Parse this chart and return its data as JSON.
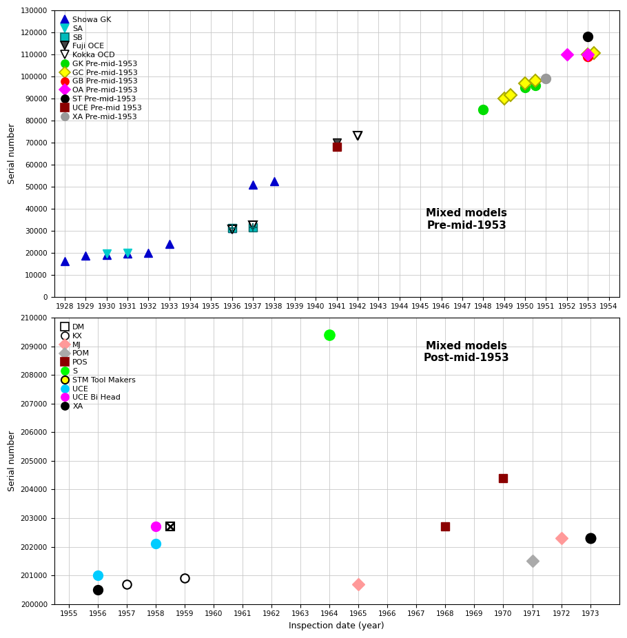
{
  "top_plot": {
    "title": "Mixed models\nPre-mid-1953",
    "ylabel": "Serial number",
    "xlim": [
      1927.5,
      1954.5
    ],
    "ylim": [
      0,
      130000
    ],
    "yticks": [
      0,
      10000,
      20000,
      30000,
      40000,
      50000,
      60000,
      70000,
      80000,
      90000,
      100000,
      110000,
      120000,
      130000
    ],
    "xticks": [
      1928,
      1929,
      1930,
      1931,
      1932,
      1933,
      1934,
      1935,
      1936,
      1937,
      1938,
      1939,
      1940,
      1941,
      1942,
      1943,
      1944,
      1945,
      1946,
      1947,
      1948,
      1949,
      1950,
      1951,
      1952,
      1953,
      1954
    ],
    "series": [
      {
        "label": "Showa GK",
        "marker": "^",
        "ms": 9,
        "mfc": "#0000CC",
        "mec": "#0000CC",
        "mew": 1.0,
        "data": [
          [
            1928,
            16000
          ],
          [
            1929,
            18500
          ],
          [
            1930,
            19000
          ],
          [
            1931,
            19500
          ],
          [
            1932,
            20000
          ],
          [
            1933,
            24000
          ],
          [
            1936,
            31000
          ],
          [
            1937,
            51000
          ],
          [
            1938,
            52500
          ]
        ]
      },
      {
        "label": "SA",
        "marker": "v",
        "ms": 9,
        "mfc": "#00CCCC",
        "mec": "#00CCCC",
        "mew": 1.0,
        "data": [
          [
            1930,
            19500
          ],
          [
            1931,
            20000
          ]
        ]
      },
      {
        "label": "SB",
        "marker": "SB",
        "ms": 9,
        "mfc": "#00BBBB",
        "mec": "#006666",
        "mew": 1.0,
        "data": [
          [
            1936,
            31000
          ],
          [
            1937,
            31500
          ]
        ]
      },
      {
        "label": "Fuji OCE",
        "marker": "fuji",
        "ms": 9,
        "mfc": "#444444",
        "mec": "#000000",
        "mew": 1.0,
        "data": [
          [
            1941,
            70000
          ],
          [
            1942,
            73000
          ]
        ]
      },
      {
        "label": "Kokka OCD",
        "marker": "v",
        "ms": 9,
        "mfc": "#ffffff",
        "mec": "#000000",
        "mew": 1.5,
        "data": [
          [
            1936,
            30500
          ],
          [
            1937,
            32500
          ],
          [
            1942,
            73000
          ]
        ]
      },
      {
        "label": "GK Pre-mid-1953",
        "marker": "o",
        "ms": 10,
        "mfc": "#00DD00",
        "mec": "#00DD00",
        "mew": 1.0,
        "data": [
          [
            1948,
            85000
          ],
          [
            1950,
            95000
          ],
          [
            1950.5,
            96000
          ]
        ]
      },
      {
        "label": "GC Pre-mid-1953",
        "marker": "D",
        "ms": 9,
        "mfc": "#FFFF00",
        "mec": "#AAAA00",
        "mew": 1.5,
        "data": [
          [
            1949,
            90000
          ],
          [
            1949.3,
            91500
          ],
          [
            1950,
            97000
          ],
          [
            1950.5,
            98000
          ],
          [
            1953,
            110000
          ],
          [
            1953.3,
            110500
          ]
        ]
      },
      {
        "label": "GB Pre-mid-1953",
        "marker": "o",
        "ms": 10,
        "mfc": "#FF0000",
        "mec": "#FF0000",
        "mew": 1.0,
        "data": [
          [
            1953,
            109000
          ]
        ]
      },
      {
        "label": "OA Pre-mid-1953",
        "marker": "D",
        "ms": 9,
        "mfc": "#FF00FF",
        "mec": "#FF00FF",
        "mew": 1.0,
        "data": [
          [
            1952,
            110000
          ],
          [
            1953,
            110000
          ]
        ]
      },
      {
        "label": "ST Pre-mid-1953",
        "marker": "o",
        "ms": 10,
        "mfc": "#000000",
        "mec": "#000000",
        "mew": 1.0,
        "data": [
          [
            1953,
            118000
          ]
        ]
      },
      {
        "label": "UCE Pre-mid 1953",
        "marker": "s",
        "ms": 8,
        "mfc": "#8B0000",
        "mec": "#8B0000",
        "mew": 1.0,
        "data": [
          [
            1941,
            68000
          ]
        ]
      },
      {
        "label": "XA Pre-mid-1953",
        "marker": "o",
        "ms": 10,
        "mfc": "#999999",
        "mec": "#999999",
        "mew": 1.0,
        "data": [
          [
            1951,
            99000
          ]
        ]
      }
    ],
    "legend_items": [
      {
        "label": "Showa GK",
        "marker": "^",
        "mfc": "#0000CC",
        "mec": "#0000CC"
      },
      {
        "label": "SA",
        "marker": "v",
        "mfc": "#00CCCC",
        "mec": "#00CCCC"
      },
      {
        "label": "SB",
        "marker": "SB",
        "mfc": "#00BBBB",
        "mec": "#006666"
      },
      {
        "label": "Fuji OCE",
        "marker": "fuji",
        "mfc": "#444444",
        "mec": "#000000"
      },
      {
        "label": "Kokka OCD",
        "marker": "v",
        "mfc": "#ffffff",
        "mec": "#000000"
      },
      {
        "label": "GK Pre-mid-1953",
        "marker": "o",
        "mfc": "#00DD00",
        "mec": "#00DD00"
      },
      {
        "label": "GC Pre-mid-1953",
        "marker": "D",
        "mfc": "#FFFF00",
        "mec": "#AAAA00"
      },
      {
        "label": "GB Pre-mid-1953",
        "marker": "o",
        "mfc": "#FF0000",
        "mec": "#FF0000"
      },
      {
        "label": "OA Pre-mid-1953",
        "marker": "D",
        "mfc": "#FF00FF",
        "mec": "#FF00FF"
      },
      {
        "label": "ST Pre-mid-1953",
        "marker": "o",
        "mfc": "#000000",
        "mec": "#000000"
      },
      {
        "label": "UCE Pre-mid 1953",
        "marker": "s",
        "mfc": "#8B0000",
        "mec": "#8B0000"
      },
      {
        "label": "XA Pre-mid-1953",
        "marker": "o",
        "mfc": "#999999",
        "mec": "#999999"
      }
    ]
  },
  "bottom_plot": {
    "title": "Mixed models\nPost-mid-1953",
    "xlabel": "Inspection date (year)",
    "ylabel": "Serial number",
    "xlim": [
      1954.5,
      1974.0
    ],
    "ylim": [
      200000,
      210000
    ],
    "yticks": [
      200000,
      201000,
      202000,
      203000,
      204000,
      205000,
      206000,
      207000,
      208000,
      209000,
      210000
    ],
    "xticks": [
      1955,
      1956,
      1957,
      1958,
      1959,
      1960,
      1961,
      1962,
      1963,
      1964,
      1965,
      1966,
      1967,
      1968,
      1969,
      1970,
      1971,
      1972,
      1973
    ],
    "series": [
      {
        "label": "DM",
        "marker": "DM",
        "ms": 9,
        "mfc": "#ffffff",
        "mec": "#000000",
        "mew": 1.5,
        "data": [
          [
            1958.5,
            202700
          ]
        ]
      },
      {
        "label": "KX",
        "marker": "o",
        "ms": 9,
        "mfc": "#ffffff",
        "mec": "#000000",
        "mew": 1.5,
        "data": [
          [
            1957,
            200700
          ],
          [
            1959,
            200900
          ]
        ]
      },
      {
        "label": "MJ",
        "marker": "D",
        "ms": 9,
        "mfc": "#FF9999",
        "mec": "#FF9999",
        "mew": 1.0,
        "data": [
          [
            1965,
            200700
          ],
          [
            1972,
            202300
          ]
        ]
      },
      {
        "label": "POM",
        "marker": "D",
        "ms": 9,
        "mfc": "#AAAAAA",
        "mec": "#AAAAAA",
        "mew": 1.0,
        "data": [
          [
            1971,
            201500
          ]
        ]
      },
      {
        "label": "POS",
        "marker": "s",
        "ms": 9,
        "mfc": "#8B0000",
        "mec": "#8B0000",
        "mew": 1.0,
        "data": [
          [
            1968,
            202700
          ],
          [
            1970,
            204400
          ]
        ]
      },
      {
        "label": "S",
        "marker": "o",
        "ms": 11,
        "mfc": "#00FF00",
        "mec": "#00FF00",
        "mew": 1.0,
        "data": [
          [
            1964,
            209400
          ]
        ]
      },
      {
        "label": "STM Tool Makers",
        "marker": "STM",
        "ms": 10,
        "mfc": "#FFFF00",
        "mec": "#000000",
        "mew": 1.5,
        "data": [
          [
            1973,
            202300
          ]
        ]
      },
      {
        "label": "UCE",
        "marker": "o",
        "ms": 10,
        "mfc": "#00CCFF",
        "mec": "#00CCFF",
        "mew": 1.0,
        "data": [
          [
            1956,
            201000
          ],
          [
            1958,
            202100
          ]
        ]
      },
      {
        "label": "UCE Bi Head",
        "marker": "o",
        "ms": 10,
        "mfc": "#FF00FF",
        "mec": "#FF00FF",
        "mew": 1.0,
        "data": [
          [
            1958,
            202700
          ]
        ]
      },
      {
        "label": "XA",
        "marker": "o",
        "ms": 10,
        "mfc": "#000000",
        "mec": "#000000",
        "mew": 1.0,
        "data": [
          [
            1956,
            200500
          ],
          [
            1973,
            202300
          ]
        ]
      }
    ],
    "legend_items": [
      {
        "label": "DM",
        "marker": "DM",
        "mfc": "#ffffff",
        "mec": "#000000"
      },
      {
        "label": "KX",
        "marker": "o",
        "mfc": "#ffffff",
        "mec": "#000000"
      },
      {
        "label": "MJ",
        "marker": "D",
        "mfc": "#FF9999",
        "mec": "#FF9999"
      },
      {
        "label": "POM",
        "marker": "D",
        "mfc": "#AAAAAA",
        "mec": "#AAAAAA"
      },
      {
        "label": "POS",
        "marker": "s",
        "mfc": "#8B0000",
        "mec": "#8B0000"
      },
      {
        "label": "S",
        "marker": "o",
        "mfc": "#00FF00",
        "mec": "#00FF00"
      },
      {
        "label": "STM Tool Makers",
        "marker": "STM",
        "mfc": "#FFFF00",
        "mec": "#000000"
      },
      {
        "label": "UCE",
        "marker": "o",
        "mfc": "#00CCFF",
        "mec": "#00CCFF"
      },
      {
        "label": "UCE Bi Head",
        "marker": "o",
        "mfc": "#FF00FF",
        "mec": "#FF00FF"
      },
      {
        "label": "XA",
        "marker": "o",
        "mfc": "#000000",
        "mec": "#000000"
      }
    ]
  },
  "background_color": "#ffffff",
  "grid_color": "#c8c8c8"
}
